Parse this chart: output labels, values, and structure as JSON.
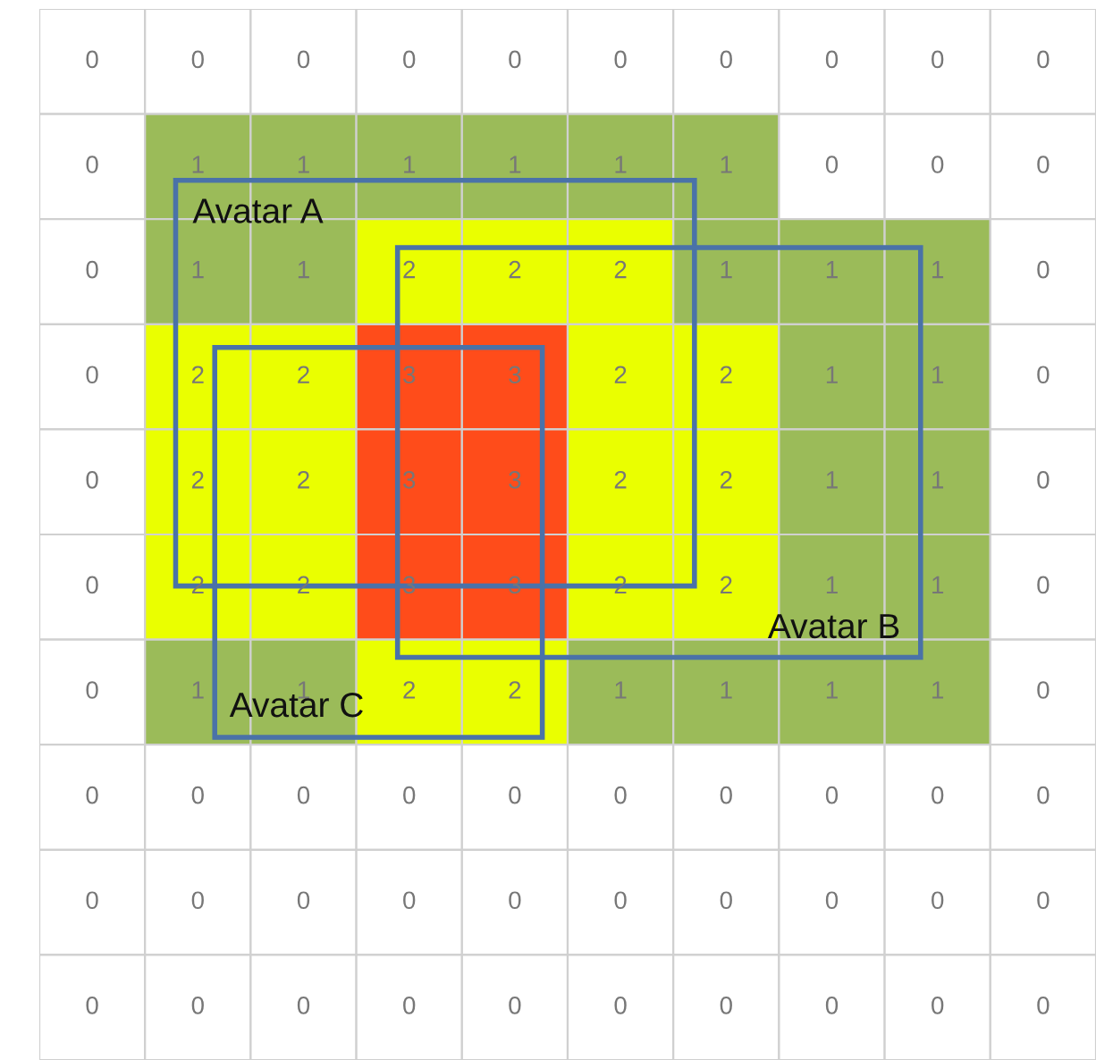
{
  "chart_data": {
    "type": "heatmap",
    "categories": [
      null,
      null,
      null,
      null,
      null,
      null,
      null,
      null,
      null,
      null
    ],
    "y_categories": [
      null,
      null,
      null,
      null,
      null,
      null,
      null,
      null,
      null,
      null
    ],
    "cells": [
      [
        0,
        0,
        0,
        0,
        0,
        0,
        0,
        0,
        0,
        0
      ],
      [
        0,
        1,
        1,
        1,
        1,
        1,
        1,
        0,
        0,
        0
      ],
      [
        0,
        1,
        1,
        2,
        2,
        2,
        1,
        1,
        1,
        0
      ],
      [
        0,
        2,
        2,
        3,
        3,
        2,
        2,
        1,
        1,
        0
      ],
      [
        0,
        2,
        2,
        3,
        3,
        2,
        2,
        1,
        1,
        0
      ],
      [
        0,
        2,
        2,
        3,
        3,
        2,
        2,
        1,
        1,
        0
      ],
      [
        0,
        1,
        1,
        2,
        2,
        1,
        1,
        1,
        1,
        0
      ],
      [
        0,
        0,
        0,
        0,
        0,
        0,
        0,
        0,
        0,
        0
      ],
      [
        0,
        0,
        0,
        0,
        0,
        0,
        0,
        0,
        0,
        0
      ],
      [
        0,
        0,
        0,
        0,
        0,
        0,
        0,
        0,
        0,
        0
      ]
    ],
    "colors": [
      "#ffffff",
      "#9bbb59",
      "#eaff00",
      "#ff4c1a"
    ],
    "data_labels": true,
    "annotations": [
      "Avatar A",
      "Avatar B",
      "Avatar C"
    ]
  }
}
